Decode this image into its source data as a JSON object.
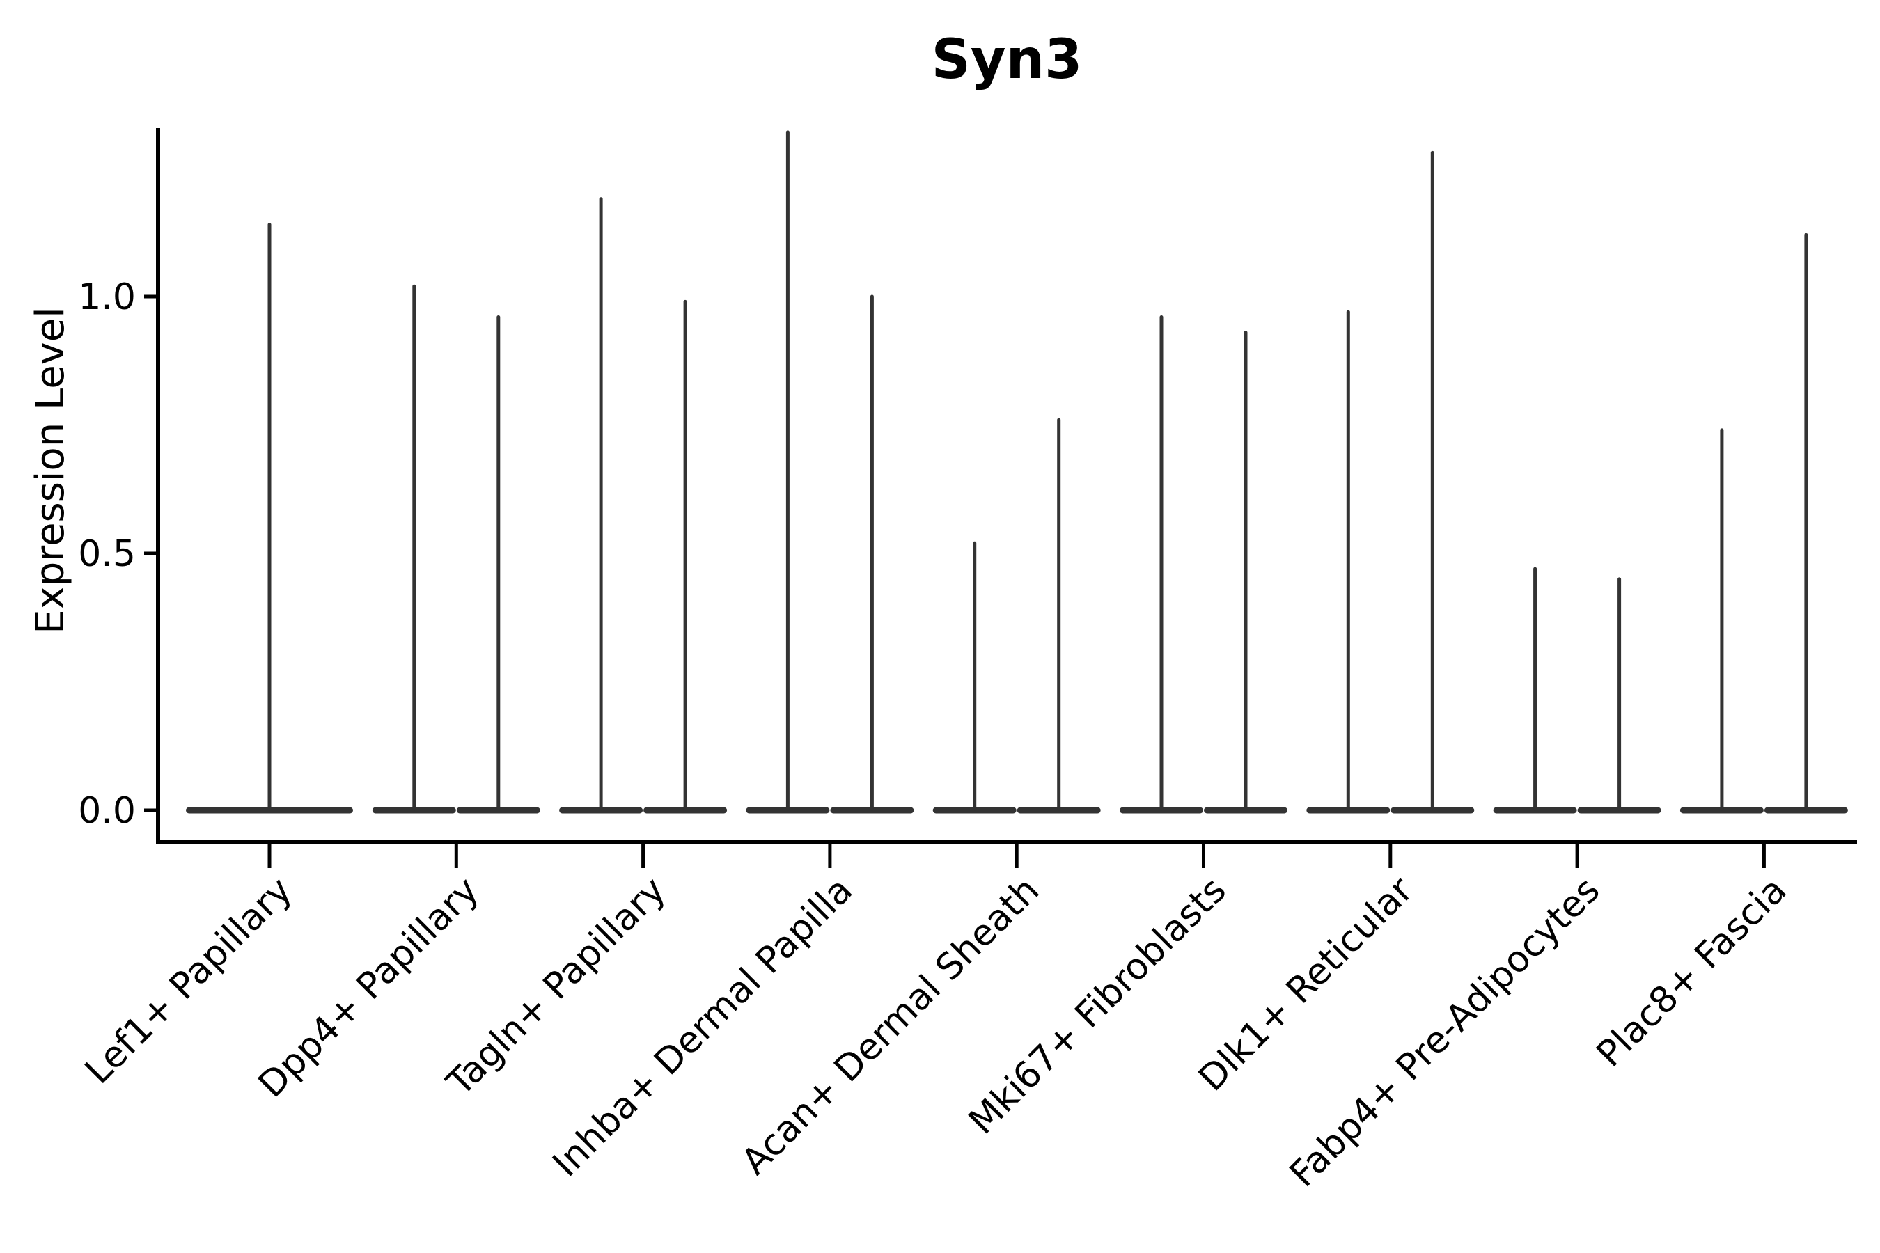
{
  "figure": {
    "title": "Syn3",
    "y_axis_label": "Expression Level",
    "background_color": "#ffffff",
    "violin_color": "#333333",
    "axis_color": "#000000",
    "y_tick_labels": [
      "0.0",
      "0.5",
      "1.0"
    ]
  },
  "chart_data": {
    "type": "violin",
    "title": "Syn3",
    "xlabel": "",
    "ylabel": "Expression Level",
    "categories": [
      "Lef1+ Papillary",
      "Dpp4+ Papillary",
      "Tagln+ Papillary",
      "Inhba+ Dermal Papilla",
      "Acan+ Dermal Sheath",
      "Mki67+ Fibroblasts",
      "Dlk1+ Reticular",
      "Fabp4+ Pre-Adipocytes",
      "Plac8+ Fascia"
    ],
    "yticks": [
      0.0,
      0.5,
      1.0
    ],
    "ylim": [
      -0.06,
      1.33
    ],
    "grid": false,
    "legend_position": "none",
    "description": "Violin plot of Syn3 expression; each violin is flattened at 0 (most cells not expressing) with a thin spike up to the maximum expression value. Category 1 has a single full-width violin; categories 2-9 each contain two side-by-side violins.",
    "violins": [
      {
        "category": "Lef1+ Papillary",
        "spike_max_values": [
          1.14
        ]
      },
      {
        "category": "Dpp4+ Papillary",
        "spike_max_values": [
          1.02,
          0.96
        ]
      },
      {
        "category": "Tagln+ Papillary",
        "spike_max_values": [
          1.19,
          0.99
        ]
      },
      {
        "category": "Inhba+ Dermal Papilla",
        "spike_max_values": [
          1.32,
          1.0
        ]
      },
      {
        "category": "Acan+ Dermal Sheath",
        "spike_max_values": [
          0.52,
          0.76
        ]
      },
      {
        "category": "Mki67+ Fibroblasts",
        "spike_max_values": [
          0.96,
          0.93
        ]
      },
      {
        "category": "Dlk1+ Reticular",
        "spike_max_values": [
          0.97,
          1.28
        ]
      },
      {
        "category": "Fabp4+ Pre-Adipocytes",
        "spike_max_values": [
          0.47,
          0.45
        ]
      },
      {
        "category": "Plac8+ Fascia",
        "spike_max_values": [
          0.74,
          1.12
        ]
      }
    ]
  }
}
